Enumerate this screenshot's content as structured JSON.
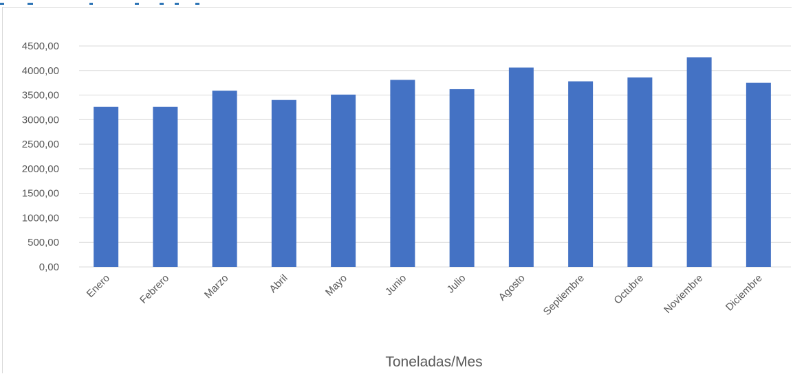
{
  "chart_data": {
    "type": "bar",
    "title": "",
    "xlabel": "Toneladas/Mes",
    "ylabel": "",
    "ylim": [
      0,
      4500
    ],
    "y_ticks": [
      0,
      500,
      1000,
      1500,
      2000,
      2500,
      3000,
      3500,
      4000,
      4500
    ],
    "y_tick_labels": [
      "0,00",
      "500,00",
      "1000,00",
      "1500,00",
      "2000,00",
      "2500,00",
      "3000,00",
      "3500,00",
      "4000,00",
      "4500,00"
    ],
    "grid": true,
    "legend": "none",
    "categories": [
      "Enero",
      "Febrero",
      "Marzo",
      "Abril",
      "Mayo",
      "Junio",
      "Julio",
      "Agosto",
      "Septiembre",
      "Octubre",
      "Noviembre",
      "Diciembre"
    ],
    "values": [
      3260,
      3260,
      3590,
      3400,
      3510,
      3810,
      3620,
      4060,
      3780,
      3860,
      4270,
      3750
    ],
    "bar_color": "#4472c4",
    "grid_color": "#d9d9d9",
    "label_color": "#595959"
  }
}
